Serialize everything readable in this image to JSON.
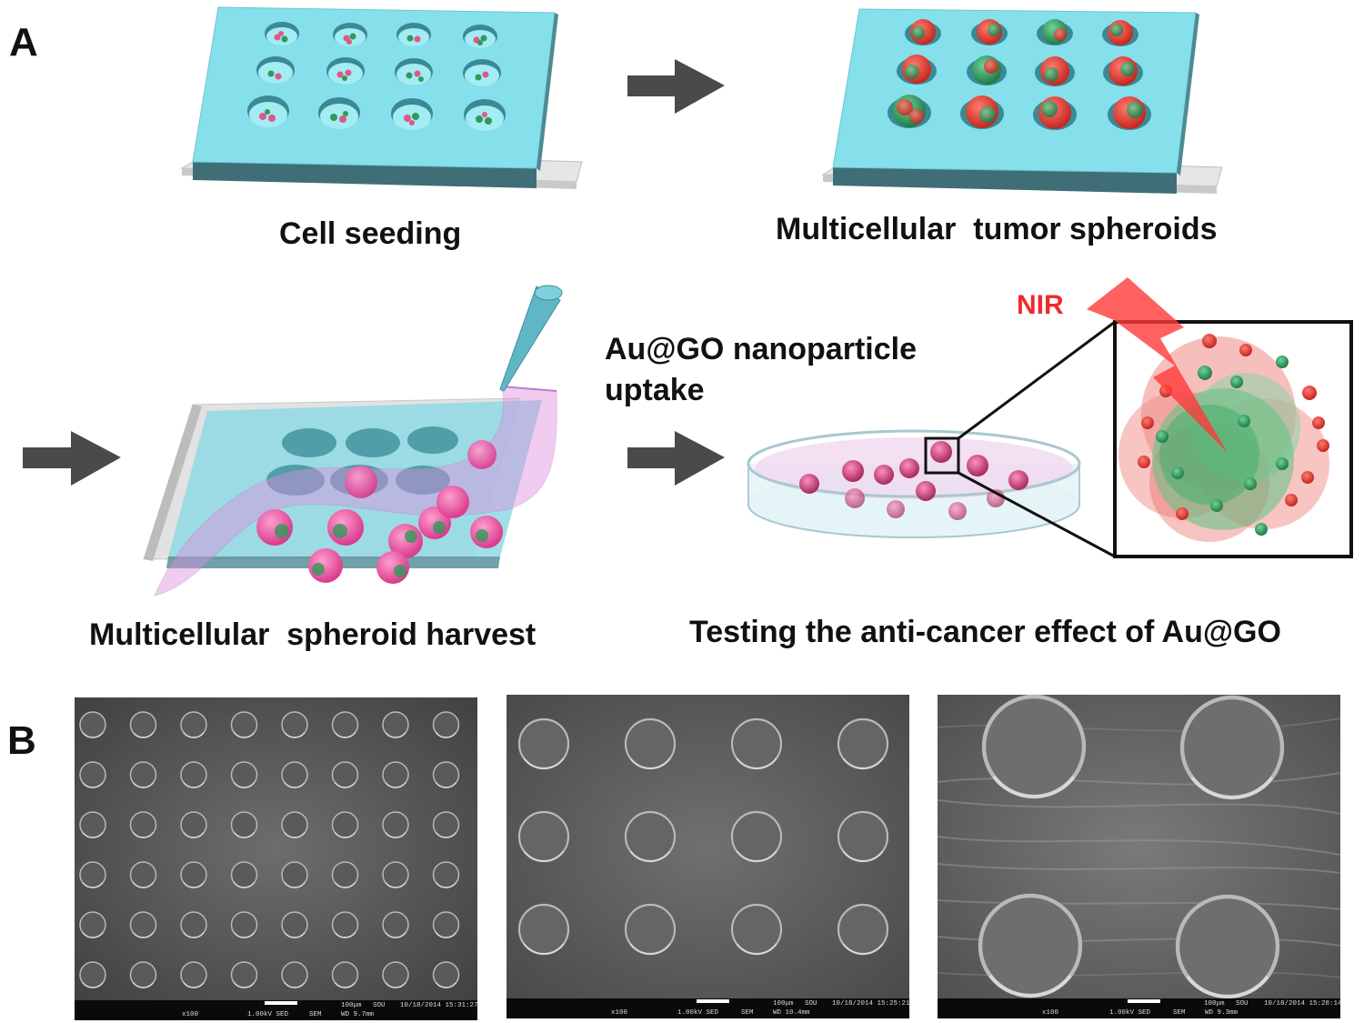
{
  "panels": {
    "a": {
      "letter": "A"
    },
    "b": {
      "letter": "B"
    }
  },
  "steps": {
    "cell_seeding": "Cell seeding",
    "tumor_spheroids": "Multicellular  tumor spheroids",
    "harvest": "Multicellular  spheroid harvest",
    "uptake_line1": "Au@GO nanoparticle",
    "uptake_line2": "uptake",
    "testing": "Testing the anti-cancer effect of Au@GO",
    "nir": "NIR"
  },
  "sem_images": [
    {
      "scale_label": "100μm",
      "left_info": "x100",
      "mid_info": "1.00kV SED",
      "sem_info": "SEM",
      "wd": "WD 9.7mm",
      "dev": "SOU",
      "datetime": "10/18/2014 15:31:27"
    },
    {
      "scale_label": "100μm",
      "left_info": "x100",
      "mid_info": "1.00kV SED",
      "sem_info": "SEM",
      "wd": "WD 10.4mm",
      "dev": "SOU",
      "datetime": "10/18/2014 15:25:21"
    },
    {
      "scale_label": "100μm",
      "left_info": "x100",
      "mid_info": "1.00kV SED",
      "sem_info": "SEM",
      "wd": "WD 9.3mm",
      "dev": "SOU",
      "datetime": "10/18/2014 15:28:14"
    }
  ],
  "colors": {
    "plate_top": "#86e1ec",
    "plate_side": "#3d6e76",
    "arrow": "#4a4a4a",
    "spheroid_red": "#e0443c",
    "spheroid_green": "#2f9a5a",
    "nir_red": "#ee2b2b"
  }
}
